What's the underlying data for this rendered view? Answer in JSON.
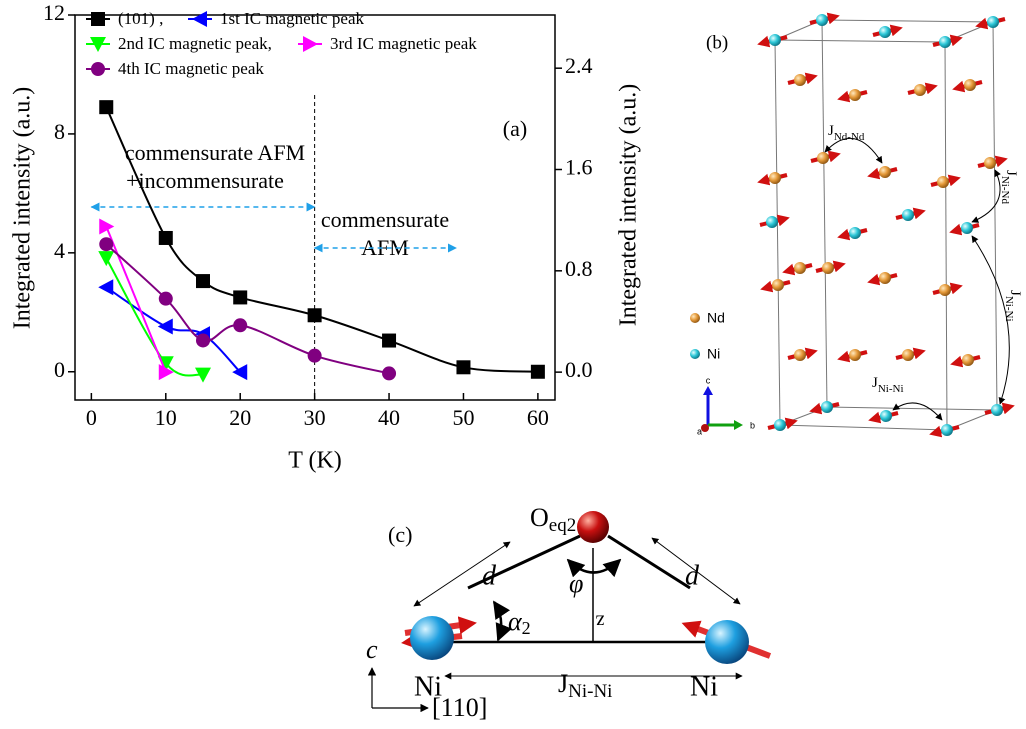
{
  "chart_data": {
    "type": "line",
    "smooth": true,
    "panel_label": "(a)",
    "x_label": "T (K)",
    "y_label": "Integrated intensity (a.u.)",
    "y2_label": "Integrated intensity (a.u.)",
    "xlim": [
      -2.2,
      62.3
    ],
    "xticks": [
      0,
      10,
      20,
      30,
      40,
      50,
      60
    ],
    "ylim": [
      -0.95,
      12
    ],
    "yticks": [
      0,
      4,
      8,
      12
    ],
    "y2lim": [
      -0.22,
      2.82
    ],
    "y2ticks": [
      {
        "value": 0,
        "label": "0.0"
      },
      0.8,
      1.6,
      2.4
    ],
    "series": [
      {
        "name": "(101) ,",
        "color": "#000000",
        "marker": "square",
        "x": [
          2,
          10,
          15,
          20,
          30,
          40,
          50,
          60
        ],
        "values": [
          8.9,
          4.5,
          3.05,
          2.5,
          1.9,
          1.05,
          0.15,
          0
        ]
      },
      {
        "name": "1st IC magnetic peak",
        "color": "#0000ff",
        "marker": "triangle-left",
        "axis": "y2",
        "x": [
          2,
          10,
          15,
          20
        ],
        "values": [
          0.67,
          0.36,
          0.3,
          0.0
        ]
      },
      {
        "name": "2nd IC magnetic peak,",
        "color": "#00ff00",
        "marker": "triangle-down",
        "axis": "y2",
        "x": [
          2,
          10,
          15
        ],
        "values": [
          0.9,
          0.07,
          -0.02
        ]
      },
      {
        "name": "3rd IC magnetic peak",
        "color": "#ff00ff",
        "marker": "triangle-right",
        "axis": "y2",
        "x": [
          2,
          10
        ],
        "values": [
          1.15,
          0.0
        ]
      },
      {
        "name": "4th IC magnetic peak",
        "color": "#800080",
        "marker": "circle",
        "axis": "y2",
        "x": [
          2,
          10,
          15,
          20,
          30,
          40
        ],
        "values": [
          1.01,
          0.58,
          0.25,
          0.37,
          0.13,
          -0.01
        ]
      }
    ],
    "vline": 30,
    "ranges": [
      [
        0,
        30
      ],
      [
        30,
        49
      ]
    ],
    "annotations": [
      "commensurate AFM",
      "+incommensurate",
      "commensurate",
      "AFM"
    ]
  },
  "panel_b": {
    "label": "(b)",
    "couplings": [
      {
        "symbol": "J",
        "subscript": "Nd-Nd"
      },
      {
        "symbol": "J",
        "subscript": "Ni-Nd"
      },
      {
        "symbol": "J",
        "subscript": "Ni-Ni"
      },
      {
        "symbol": "J",
        "subscript": "Ni-Ni"
      }
    ],
    "legend": [
      "Nd",
      "Ni"
    ],
    "axes": [
      "c",
      "b",
      "a"
    ]
  },
  "panel_c": {
    "label": "(c)",
    "oxygen": {
      "symbol": "O",
      "subscript": "eq2"
    },
    "distances": [
      "d",
      "d"
    ],
    "angle": {
      "symbol": "α",
      "subscript": "2"
    },
    "phi": "φ",
    "height": "z",
    "atoms": [
      "Ni",
      "Ni"
    ],
    "coupling": {
      "symbol": "J",
      "subscript": "Ni-Ni"
    },
    "axes": [
      "c",
      "[110]"
    ]
  }
}
